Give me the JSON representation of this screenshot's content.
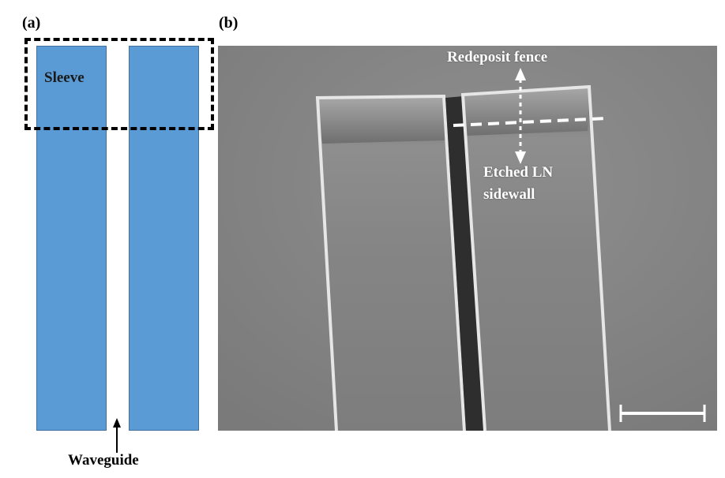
{
  "panel_a": {
    "label": "(a)",
    "sleeve_label": "Sleeve",
    "waveguide_label": "Waveguide",
    "bar_color": "#5b9bd5"
  },
  "panel_b": {
    "label": "(b)",
    "redeposit_label": "Redeposit fence",
    "etched_label_line1": "Etched LN",
    "etched_label_line2": "sidewall",
    "background_color": "#858585"
  }
}
